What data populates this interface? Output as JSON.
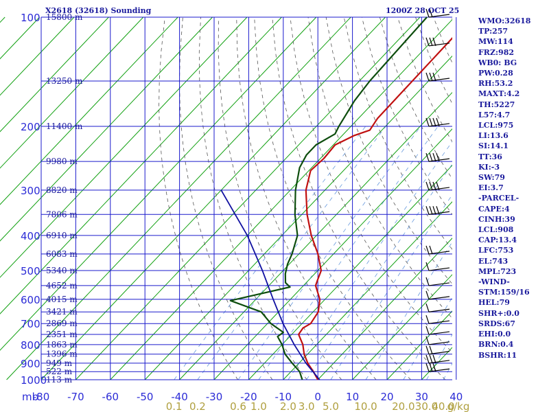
{
  "header": {
    "title": "X2618 (32618) Sounding",
    "timestamp": "1200Z 28 OCT 25"
  },
  "indices": [
    "WMO:32618",
    "TP:257",
    "MW:114",
    "FRZ:982",
    "WB0: BG",
    "PW:0.28",
    "RH:53.2",
    "MAXT:4.2",
    "TH:5227",
    "L57:4.7",
    "LCL:975",
    "LI:13.6",
    "SI:14.1",
    "TT:36",
    "KI:-3",
    "SW:79",
    "EI:3.7",
    "-PARCEL-",
    "CAPE:4",
    "CINH:39",
    "LCL:908",
    "CAP:13.4",
    "LFC:753",
    "EL:743",
    "MPL:723",
    "-WIND-",
    "STM:159/16",
    "HEL:79",
    "SHR+:0.0",
    "SRDS:67",
    "EHI:0.0",
    "BRN:0.4",
    "BSHR:11"
  ],
  "colors": {
    "grid": "#1a1acc",
    "isotherm": "#10a010",
    "dry_adiabat": "#555555",
    "mixing_ratio": "#6699dd",
    "temperature": "#c01010",
    "dewpoint": "#0d4d0d",
    "parcel": "#1010a0",
    "wind_barb": "#000000",
    "header_text": "#1a1a9c",
    "mixing_ratio_label": "#b0a040"
  },
  "chart_data": {
    "type": "line",
    "title": "X2618 (32618) Sounding",
    "xlabel": "",
    "ylabel": "mb",
    "x_unit": "°C",
    "ylim": [
      1000,
      100
    ],
    "xlim": [
      -80,
      40
    ],
    "y_scale": "log",
    "grid": true,
    "y_ticks": [
      100,
      200,
      300,
      400,
      500,
      600,
      700,
      800,
      900,
      1000
    ],
    "x_ticks": [
      -80,
      -70,
      -60,
      -50,
      -40,
      -30,
      -20,
      -10,
      0,
      10,
      20,
      30,
      40
    ],
    "x_tick_labels": [
      "-80",
      "-70",
      "-60",
      "-50",
      "-40",
      "-30",
      "-20",
      "-10",
      "0",
      "10",
      "20",
      "30",
      "40"
    ],
    "y_axis_label": "mb",
    "height_labels": [
      {
        "p": 1000,
        "text": "113 m"
      },
      {
        "p": 950,
        "text": "522 m"
      },
      {
        "p": 900,
        "text": "949 m"
      },
      {
        "p": 850,
        "text": "1396 m"
      },
      {
        "p": 800,
        "text": "1863 m"
      },
      {
        "p": 750,
        "text": "2351 m"
      },
      {
        "p": 700,
        "text": "2869 m"
      },
      {
        "p": 650,
        "text": "3421 m"
      },
      {
        "p": 600,
        "text": "4015 m"
      },
      {
        "p": 550,
        "text": "4652 m"
      },
      {
        "p": 500,
        "text": "5340 m"
      },
      {
        "p": 450,
        "text": "6083 m"
      },
      {
        "p": 400,
        "text": "6910 m"
      },
      {
        "p": 350,
        "text": "7806 m"
      },
      {
        "p": 300,
        "text": "8820 m"
      },
      {
        "p": 250,
        "text": "9980 m"
      },
      {
        "p": 200,
        "text": "11400 m"
      },
      {
        "p": 150,
        "text": "13250 m"
      },
      {
        "p": 100,
        "text": "15800 m"
      }
    ],
    "mixing_ratio_lines": [
      0.1,
      0.2,
      0.6,
      1.0,
      2.0,
      3.0,
      5.0,
      10.0,
      20.0,
      30.0,
      40.0
    ],
    "mixing_ratio_labels": [
      "0.1",
      "0.2",
      "0.6",
      "1.0",
      "2.0",
      "3.0",
      "5.0",
      "10.0",
      "20.0",
      "30.0",
      "40.0"
    ],
    "mixing_ratio_unit": "g/kg",
    "series": [
      {
        "name": "Temperature",
        "points": [
          {
            "p": 1000,
            "t": 0.0
          },
          {
            "p": 950,
            "t": -3.5
          },
          {
            "p": 900,
            "t": -7.5
          },
          {
            "p": 850,
            "t": -11.0
          },
          {
            "p": 800,
            "t": -14.0
          },
          {
            "p": 750,
            "t": -18.0
          },
          {
            "p": 720,
            "t": -18.5
          },
          {
            "p": 700,
            "t": -17.5
          },
          {
            "p": 650,
            "t": -18.5
          },
          {
            "p": 600,
            "t": -21.5
          },
          {
            "p": 550,
            "t": -26.5
          },
          {
            "p": 530,
            "t": -27.5
          },
          {
            "p": 500,
            "t": -29.0
          },
          {
            "p": 450,
            "t": -34.5
          },
          {
            "p": 400,
            "t": -41.5
          },
          {
            "p": 350,
            "t": -48.5
          },
          {
            "p": 300,
            "t": -55.5
          },
          {
            "p": 265,
            "t": -59.5
          },
          {
            "p": 245,
            "t": -59.0
          },
          {
            "p": 225,
            "t": -59.5
          },
          {
            "p": 212,
            "t": -56.5
          },
          {
            "p": 205,
            "t": -53.5
          },
          {
            "p": 190,
            "t": -54.5
          },
          {
            "p": 100,
            "t": -55.0
          }
        ]
      },
      {
        "name": "Dewpoint",
        "points": [
          {
            "p": 1000,
            "t": -4.5
          },
          {
            "p": 950,
            "t": -7.5
          },
          {
            "p": 900,
            "t": -12.0
          },
          {
            "p": 850,
            "t": -16.5
          },
          {
            "p": 800,
            "t": -20.0
          },
          {
            "p": 760,
            "t": -23.5
          },
          {
            "p": 740,
            "t": -23.0
          },
          {
            "p": 700,
            "t": -29.0
          },
          {
            "p": 650,
            "t": -35.0
          },
          {
            "p": 605,
            "t": -47.0
          },
          {
            "p": 555,
            "t": -33.5
          },
          {
            "p": 540,
            "t": -36.0
          },
          {
            "p": 510,
            "t": -38.5
          },
          {
            "p": 480,
            "t": -40.5
          },
          {
            "p": 450,
            "t": -42.0
          },
          {
            "p": 400,
            "t": -45.5
          },
          {
            "p": 350,
            "t": -52.0
          },
          {
            "p": 300,
            "t": -58.5
          },
          {
            "p": 260,
            "t": -63.5
          },
          {
            "p": 240,
            "t": -65.0
          },
          {
            "p": 225,
            "t": -65.0
          },
          {
            "p": 210,
            "t": -62.5
          },
          {
            "p": 200,
            "t": -63.5
          },
          {
            "p": 170,
            "t": -66.0
          },
          {
            "p": 150,
            "t": -67.0
          },
          {
            "p": 100,
            "t": -68.0
          }
        ]
      },
      {
        "name": "Parcel",
        "points": [
          {
            "p": 1000,
            "t": 0.5
          },
          {
            "p": 900,
            "t": -8.0
          },
          {
            "p": 800,
            "t": -16.5
          },
          {
            "p": 700,
            "t": -25.5
          },
          {
            "p": 600,
            "t": -35.0
          },
          {
            "p": 500,
            "t": -46.0
          },
          {
            "p": 400,
            "t": -60.0
          },
          {
            "p": 300,
            "t": -80.0
          }
        ]
      }
    ],
    "wind_barbs": [
      {
        "p": 100,
        "speed_kt": 20
      },
      {
        "p": 120,
        "speed_kt": 25
      },
      {
        "p": 150,
        "speed_kt": 30
      },
      {
        "p": 200,
        "speed_kt": 45
      },
      {
        "p": 250,
        "speed_kt": 40
      },
      {
        "p": 300,
        "speed_kt": 45
      },
      {
        "p": 350,
        "speed_kt": 40
      },
      {
        "p": 450,
        "speed_kt": 15
      },
      {
        "p": 500,
        "speed_kt": 10
      },
      {
        "p": 550,
        "speed_kt": 10
      },
      {
        "p": 600,
        "speed_kt": 10
      },
      {
        "p": 650,
        "speed_kt": 10
      },
      {
        "p": 700,
        "speed_kt": 10
      },
      {
        "p": 750,
        "speed_kt": 10
      },
      {
        "p": 800,
        "speed_kt": 10
      },
      {
        "p": 850,
        "speed_kt": 15
      },
      {
        "p": 900,
        "speed_kt": 30
      },
      {
        "p": 950,
        "speed_kt": 30
      }
    ]
  }
}
